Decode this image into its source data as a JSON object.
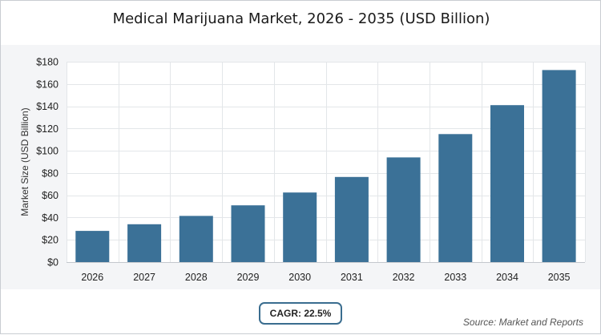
{
  "chart_data": {
    "type": "bar",
    "title": "Medical Marijuana Market, 2026 - 2035 (USD Billion)",
    "ylabel": "Market Size (USD Billion)",
    "xlabel": "",
    "categories": [
      "2026",
      "2027",
      "2028",
      "2029",
      "2030",
      "2031",
      "2032",
      "2033",
      "2034",
      "2035"
    ],
    "values": [
      28,
      34,
      41.5,
      51,
      62.5,
      76.5,
      94,
      115,
      141,
      172.5
    ],
    "ylim": [
      0,
      180
    ],
    "yticks": [
      0,
      20,
      40,
      60,
      80,
      100,
      120,
      140,
      160,
      180
    ],
    "ytick_labels": [
      "$0",
      "$20",
      "$40",
      "$60",
      "$80",
      "$100",
      "$120",
      "$140",
      "$160",
      "$180"
    ],
    "grid": true,
    "bar_color": "#3b7197"
  },
  "cagr_label": "CAGR: 22.5%",
  "source_label": "Source: Market and Reports"
}
